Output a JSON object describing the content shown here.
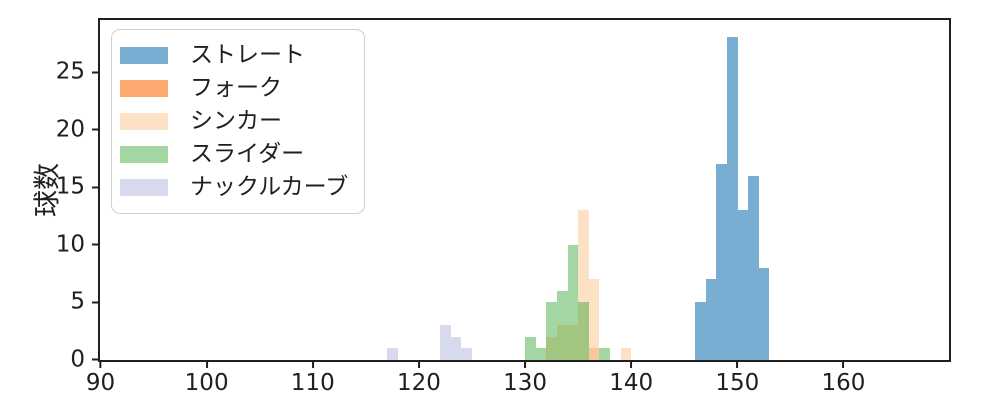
{
  "figure": {
    "background": "#ffffff",
    "axis_color": "#1f1f1f",
    "legend_border_color": "#d0d0d0"
  },
  "chart_data": {
    "type": "histogram",
    "title": "",
    "xlabel": "",
    "ylabel": "球数",
    "xlim": [
      90,
      169.9
    ],
    "ylim": [
      0,
      29.5
    ],
    "xticks": [
      90,
      100,
      110,
      120,
      130,
      140,
      150,
      160
    ],
    "yticks": [
      0,
      5,
      10,
      15,
      20,
      25
    ],
    "grid": false,
    "legend_position": "upper left",
    "series": [
      {
        "id": "straight",
        "label": "ストレート",
        "color": "#78add2",
        "fill": "rgba(31,119,180,0.6)",
        "z": 4,
        "bin_edges": [
          146,
          147,
          148,
          149,
          150,
          151,
          152,
          153
        ],
        "counts": [
          5,
          7,
          17,
          28,
          13,
          16,
          8
        ]
      },
      {
        "id": "fork",
        "label": "フォーク",
        "color": "#fcaa70",
        "fill": "rgba(252,170,112,0.5)",
        "z": 2,
        "bin_edges": [
          136,
          137
        ],
        "counts": [
          1
        ]
      },
      {
        "id": "sinker",
        "label": "シンカー",
        "color": "#fde1c4",
        "fill": "#fde1c4",
        "z": 1,
        "bin_edges": [
          132,
          133,
          134,
          135,
          136,
          137,
          138,
          139,
          140
        ],
        "counts": [
          2,
          3,
          3,
          13,
          7,
          0,
          0,
          1
        ]
      },
      {
        "id": "slider",
        "label": "スライダー",
        "color": "#a4d6a4",
        "fill": "rgba(44,160,44,0.43)",
        "z": 3,
        "bin_edges": [
          130,
          131,
          132,
          133,
          134,
          135,
          136,
          137,
          138
        ],
        "counts": [
          2,
          1,
          5,
          6,
          10,
          5,
          0,
          1
        ]
      },
      {
        "id": "knuckle_curve",
        "label": "ナックルカーブ",
        "color": "#d7daec",
        "fill": "#d7daec",
        "z": 5,
        "bin_edges": [
          117,
          118,
          119,
          120,
          121,
          122,
          123,
          124,
          125
        ],
        "counts": [
          1,
          0,
          0,
          0,
          0,
          3,
          2,
          1
        ]
      }
    ]
  }
}
